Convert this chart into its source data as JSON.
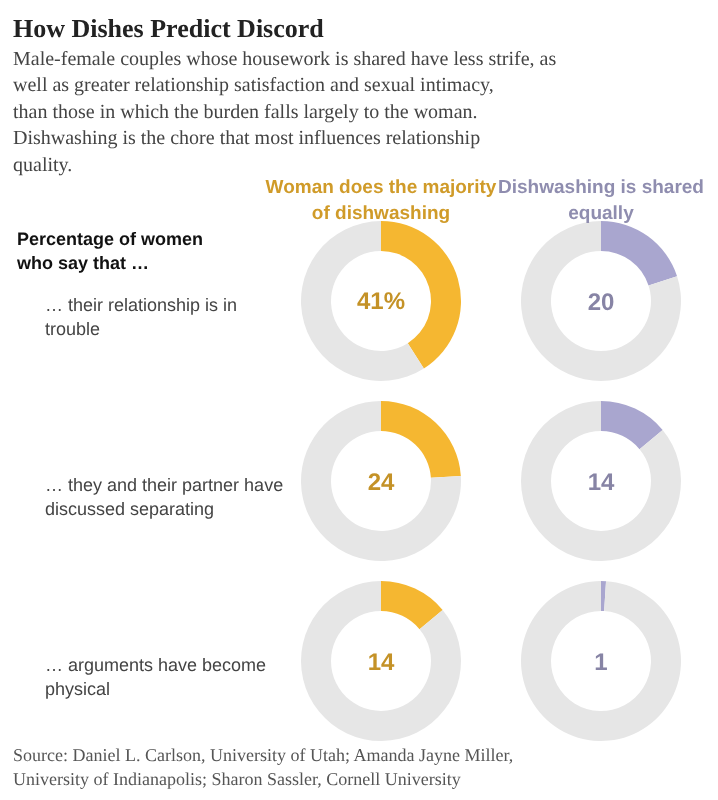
{
  "chart_data": [
    {
      "type": "other",
      "title": "How Dishes Predict Discord",
      "subtitle": "Male-female couples whose housework is shared have less strife, as well as greater relationship satisfaction and sexual intimacy, than those in which the burden falls largely to the woman. Dishwashing is the chore that most influences relationship quality.",
      "annotations": [
        "Percentage of women who say that …",
        "Source: Daniel L. Carlson, University of Utah; Amanda Jayne Miller, University of Indianapolis; Sharon Sassler, Cornell University"
      ]
    },
    {
      "type": "donut",
      "title": "Woman does the majority of dishwashing",
      "ylabel": "… their relationship is in trouble",
      "categories": [
        null,
        null
      ],
      "values": [
        41,
        59
      ],
      "colors": [
        "#f5b731",
        "#e6e6e6"
      ],
      "annotations": [
        "41%"
      ]
    },
    {
      "type": "donut",
      "title": "Dishwashing is shared equally",
      "categories": [
        null,
        null
      ],
      "values": [
        20,
        80
      ],
      "colors": [
        "#a9a6cf",
        "#e6e6e6"
      ],
      "annotations": [
        "20"
      ]
    },
    {
      "type": "donut",
      "ylabel": "… they and their partner have discussed separating",
      "categories": [
        null,
        null
      ],
      "values": [
        24,
        76
      ],
      "colors": [
        "#f5b731",
        "#e6e6e6"
      ],
      "annotations": [
        "24"
      ]
    },
    {
      "type": "donut",
      "categories": [
        null,
        null
      ],
      "values": [
        14,
        86
      ],
      "colors": [
        "#a9a6cf",
        "#e6e6e6"
      ],
      "annotations": [
        "14"
      ]
    },
    {
      "type": "donut",
      "ylabel": "… arguments have become physical",
      "categories": [
        null,
        null
      ],
      "values": [
        14,
        86
      ],
      "colors": [
        "#f5b731",
        "#e6e6e6"
      ],
      "annotations": [
        "14"
      ]
    },
    {
      "type": "donut",
      "categories": [
        null,
        null
      ],
      "values": [
        1,
        99
      ],
      "colors": [
        "#a9a6cf",
        "#e6e6e6"
      ],
      "annotations": [
        "1"
      ]
    }
  ]
}
